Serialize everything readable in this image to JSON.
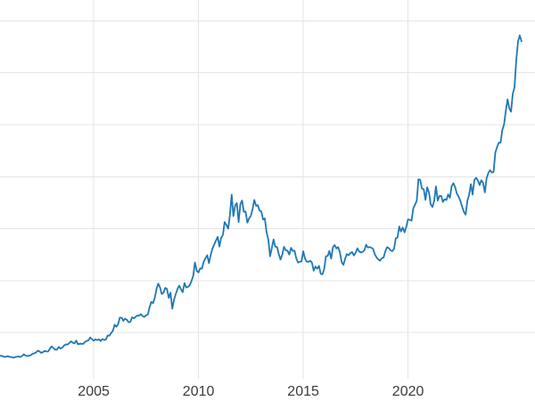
{
  "chart_data": {
    "type": "line",
    "title": "",
    "xlabel": "",
    "ylabel": "",
    "grid": true,
    "legend": "none",
    "line_color": "#1f77b4",
    "grid_color": "#e4e4e4",
    "tick_label_color": "#3b3b3b",
    "background_color": "#ffffff",
    "xlim": [
      2000.53,
      2026.06
    ],
    "ylim": [
      0,
      3700
    ],
    "xticks": [
      2005,
      2010,
      2015,
      2020
    ],
    "xtick_labels": [
      "2005",
      "2010",
      "2015",
      "2020"
    ],
    "ygrid_values": [
      500,
      1000,
      1500,
      2000,
      2500,
      3000,
      3500
    ],
    "x_start": 2000.5,
    "x_step": 0.0833333,
    "values": [
      276,
      277,
      273,
      264,
      269,
      272,
      264,
      266,
      257,
      263,
      267,
      270,
      265,
      274,
      291,
      278,
      274,
      277,
      282,
      296,
      301,
      308,
      326,
      318,
      304,
      312,
      323,
      317,
      318,
      347,
      367,
      350,
      334,
      336,
      361,
      346,
      354,
      375,
      386,
      384,
      398,
      416,
      402,
      395,
      423,
      387,
      393,
      392,
      391,
      410,
      419,
      425,
      453,
      437,
      422,
      435,
      427,
      435,
      418,
      437,
      429,
      433,
      472,
      470,
      495,
      517,
      575,
      556,
      582,
      644,
      642,
      613,
      634,
      623,
      599,
      603,
      647,
      636,
      651,
      664,
      662,
      677,
      659,
      650,
      665,
      673,
      743,
      795,
      783,
      834,
      923,
      971,
      933,
      871,
      885,
      930,
      918,
      833,
      884,
      730,
      814,
      870,
      919,
      952,
      916,
      888,
      975,
      934,
      939,
      955,
      995,
      1045,
      1175,
      1096,
      1078,
      1118,
      1115,
      1179,
      1215,
      1244,
      1169,
      1246,
      1307,
      1346,
      1383,
      1421,
      1327,
      1411,
      1439,
      1563,
      1536,
      1500,
      1628,
      1826,
      1620,
      1722,
      1746,
      1564,
      1738,
      1770,
      1662,
      1664,
      1558,
      1598,
      1622,
      1692,
      1776,
      1719,
      1726,
      1675,
      1664,
      1588,
      1598,
      1469,
      1394,
      1234,
      1313,
      1396,
      1326,
      1324,
      1253,
      1202,
      1251,
      1326,
      1291,
      1288,
      1250,
      1315,
      1285,
      1287,
      1216,
      1173,
      1182,
      1184,
      1283,
      1213,
      1183,
      1180,
      1191,
      1171,
      1095,
      1135,
      1114,
      1142,
      1065,
      1060,
      1111,
      1234,
      1237,
      1285,
      1212,
      1322,
      1342,
      1309,
      1322,
      1272,
      1178,
      1152,
      1212,
      1255,
      1244,
      1266,
      1275,
      1242,
      1267,
      1311,
      1280,
      1271,
      1275,
      1291,
      1345,
      1318,
      1323,
      1315,
      1305,
      1253,
      1224,
      1202,
      1192,
      1215,
      1222,
      1281,
      1321,
      1313,
      1292,
      1283,
      1305,
      1409,
      1414,
      1520,
      1472,
      1511,
      1464,
      1517,
      1589,
      1585,
      1577,
      1694,
      1730,
      1768,
      1976,
      1968,
      1886,
      1879,
      1777,
      1898,
      1848,
      1734,
      1708,
      1768,
      1907,
      1770,
      1814,
      1815,
      1757,
      1783,
      1775,
      1829,
      1797,
      1909,
      1937,
      1897,
      1837,
      1807,
      1766,
      1711,
      1661,
      1634,
      1769,
      1824,
      1928,
      1827,
      1969,
      1990,
      1963,
      1919,
      1965,
      1940,
      1849,
      1984,
      2036,
      2063,
      2040,
      2044,
      2230,
      2286,
      2327,
      2327,
      2448,
      2503,
      2635,
      2744,
      2657,
      2625,
      2798,
      2858,
      3124,
      3302,
      3360,
      3303
    ]
  }
}
